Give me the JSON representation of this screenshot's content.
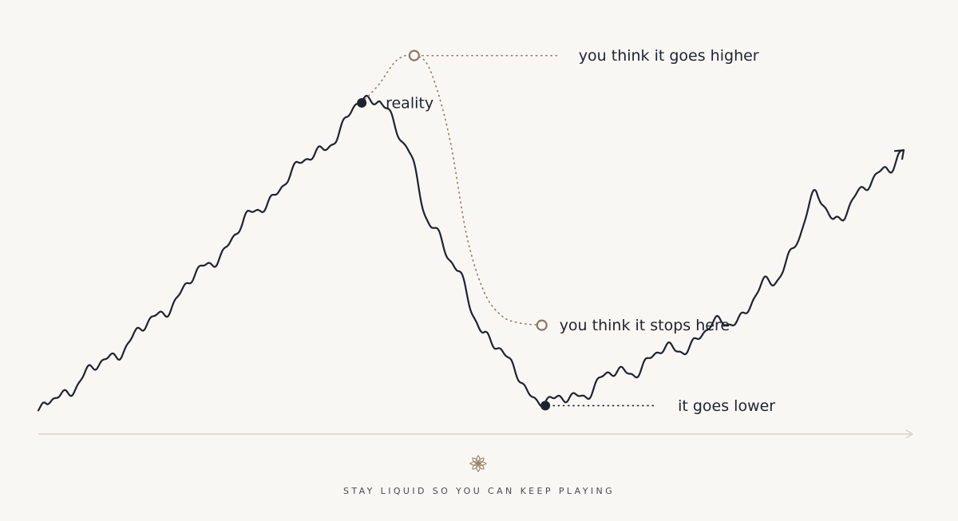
{
  "chart_data": {
    "type": "line",
    "title": "",
    "xlabel": "",
    "ylabel": "",
    "grid": false,
    "series": [
      {
        "key": "reality",
        "color": "#1e2330",
        "style": "solid",
        "points": [
          [
            0,
            5
          ],
          [
            3,
            13
          ],
          [
            6,
            22
          ],
          [
            9,
            33
          ],
          [
            12,
            45
          ],
          [
            14.5,
            55
          ],
          [
            17,
            63
          ],
          [
            18.5,
            70
          ],
          [
            19.5,
            72
          ],
          [
            21,
            60
          ],
          [
            22.5,
            45
          ],
          [
            24,
            33
          ],
          [
            25.5,
            22
          ],
          [
            27,
            14
          ],
          [
            28.5,
            8
          ],
          [
            29.5,
            6
          ],
          [
            31,
            9
          ],
          [
            34,
            14
          ],
          [
            37,
            19
          ],
          [
            40,
            25
          ],
          [
            42,
            32
          ],
          [
            43.5,
            42
          ],
          [
            44.5,
            50
          ],
          [
            45.5,
            46
          ],
          [
            47,
            50
          ],
          [
            48.5,
            57
          ],
          [
            49.5,
            60
          ]
        ]
      },
      {
        "key": "you think it goes higher",
        "color": "#8c7a66",
        "style": "dotted",
        "points": [
          [
            18.5,
            70
          ],
          [
            19.5,
            74
          ],
          [
            20.5,
            79
          ],
          [
            21.5,
            80
          ],
          [
            22.4,
            77
          ],
          [
            23.5,
            63
          ],
          [
            24.5,
            42
          ],
          [
            25.5,
            30
          ],
          [
            26.5,
            25
          ],
          [
            27.5,
            23.5
          ],
          [
            28.8,
            23
          ]
        ]
      }
    ],
    "markers": [
      {
        "label": "reality",
        "x": 18.5,
        "y": 70,
        "style": "filled",
        "color": "#1e2330"
      },
      {
        "label": "you think it goes higher",
        "x": 21.5,
        "y": 80,
        "style": "hollow",
        "color": "#8c7a66"
      },
      {
        "label": "you think it stops here",
        "x": 28.8,
        "y": 23,
        "style": "hollow",
        "color": "#8c7a66"
      },
      {
        "label": "it goes lower",
        "x": 29.0,
        "y": 6,
        "style": "filled",
        "color": "#1e2330"
      }
    ],
    "annotations": [
      {
        "text": "reality",
        "anchor": "reality",
        "leader": false
      },
      {
        "text": "you think it goes higher",
        "anchor": "you think it goes higher",
        "leader": true
      },
      {
        "text": "you think it stops here",
        "anchor": "you think it stops here",
        "leader": false
      },
      {
        "text": "it goes lower",
        "anchor": "it goes lower",
        "leader": true
      }
    ],
    "xlim": [
      0,
      50
    ],
    "ylim": [
      0,
      85
    ],
    "axis_color": "#d8d2c8",
    "background": "#f9f7f3"
  },
  "footer": {
    "logo_icon": "lotus-icon",
    "tagline": "STAY LIQUID SO YOU CAN KEEP PLAYING"
  }
}
